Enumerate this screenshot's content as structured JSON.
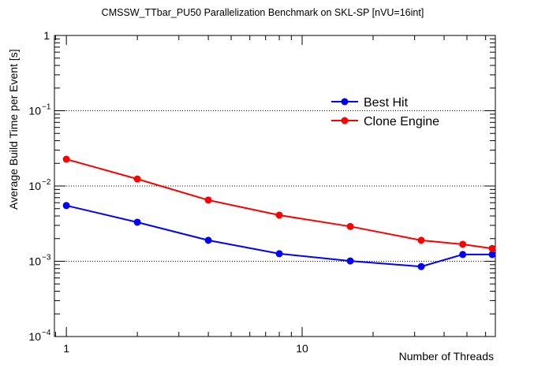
{
  "chart_data": {
    "type": "line",
    "title": "CMSSW_TTbar_PU50 Parallelization Benchmark on SKL-SP [nVU=16int]",
    "xlabel": "Number of Threads",
    "ylabel": "Average Build Time per Event [s]",
    "xscale": "log",
    "yscale": "log",
    "xlim": [
      0.89,
      66
    ],
    "ylim": [
      0.0001,
      1
    ],
    "x_tick_labels": [
      {
        "value": 1,
        "label": "1"
      },
      {
        "value": 10,
        "label": "10"
      }
    ],
    "y_tick_labels": [
      {
        "value": 1,
        "label": "1"
      },
      {
        "value": 0.1,
        "label": "10",
        "exp": "−1"
      },
      {
        "value": 0.01,
        "label": "10",
        "exp": "−2"
      },
      {
        "value": 0.001,
        "label": "10",
        "exp": "−3"
      },
      {
        "value": 0.0001,
        "label": "10",
        "exp": "−4"
      }
    ],
    "grid": "horizontal dotted at decades",
    "legend_position": "top-right",
    "x": [
      1,
      2,
      4,
      8,
      16,
      32,
      48,
      64
    ],
    "series": [
      {
        "name": "Best Hit",
        "color": "#0000ff",
        "values": [
          0.0055,
          0.0033,
          0.0019,
          0.00126,
          0.00101,
          0.00085,
          0.00123,
          0.00123
        ]
      },
      {
        "name": "Clone Engine",
        "color": "#ff0000",
        "values": [
          0.0227,
          0.0124,
          0.0065,
          0.0041,
          0.0029,
          0.0019,
          0.00168,
          0.00148
        ]
      }
    ]
  }
}
